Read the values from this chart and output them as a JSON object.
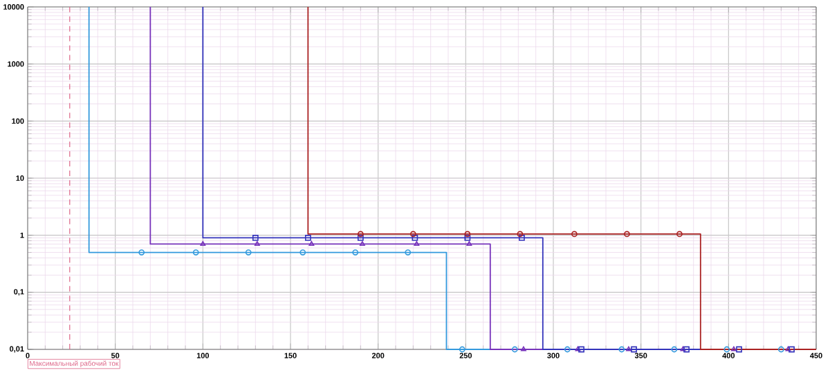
{
  "chart_data": {
    "type": "line",
    "xlim": [
      0,
      450
    ],
    "ylim": [
      0.01,
      10000
    ],
    "log": "y",
    "grid": true,
    "xticks": [
      0,
      50,
      100,
      150,
      200,
      250,
      300,
      350,
      400,
      450
    ],
    "yticks": [
      {
        "value": 0.01,
        "label": "0,01"
      },
      {
        "value": 0.1,
        "label": "0,1"
      },
      1,
      10,
      100,
      1000,
      10000
    ],
    "ref_lines": [
      {
        "axis": "x",
        "value": 24,
        "label": "Максимальный рабочий ток",
        "color": "#dd6688",
        "line_style": "dashed"
      }
    ],
    "series": [
      {
        "color": "#3399dd",
        "marker": "none",
        "x": [
          35,
          35,
          239,
          239,
          450
        ],
        "values": [
          10000,
          0.5,
          0.5,
          0.01,
          0.01
        ]
      },
      {
        "color": "#7733bb",
        "marker": "none",
        "x": [
          70,
          70,
          264,
          264,
          450
        ],
        "values": [
          10000,
          0.7,
          0.7,
          0.01,
          0.01
        ]
      },
      {
        "color": "#3333bb",
        "marker": "none",
        "x": [
          100,
          100,
          294,
          294,
          450
        ],
        "values": [
          10000,
          0.9,
          0.9,
          0.01,
          0.01
        ]
      },
      {
        "color": "#aa2222",
        "marker": "none",
        "x": [
          160,
          160,
          384,
          384,
          450
        ],
        "values": [
          10000,
          1.05,
          1.05,
          0.01,
          0.01
        ]
      },
      {
        "type": "scatter",
        "color": "#3399dd",
        "marker": "circle",
        "x": [
          65,
          96,
          126,
          157,
          187,
          217,
          248,
          278,
          308,
          339,
          369,
          399,
          430
        ],
        "values": [
          0.5,
          0.5,
          0.5,
          0.5,
          0.5,
          0.5,
          0.01,
          0.01,
          0.01,
          0.01,
          0.01,
          0.01,
          0.01
        ]
      },
      {
        "type": "scatter",
        "color": "#7733bb",
        "marker": "triangle",
        "x": [
          100,
          131,
          162,
          191,
          222,
          252,
          283,
          314,
          343,
          374,
          403,
          434
        ],
        "values": [
          0.7,
          0.7,
          0.7,
          0.7,
          0.7,
          0.7,
          0.01,
          0.01,
          0.01,
          0.01,
          0.01,
          0.01
        ]
      },
      {
        "type": "scatter",
        "color": "#3333bb",
        "marker": "square",
        "x": [
          130,
          160,
          190,
          221,
          251,
          282,
          316,
          346,
          376,
          406,
          436
        ],
        "values": [
          0.9,
          0.9,
          0.9,
          0.9,
          0.9,
          0.9,
          0.01,
          0.01,
          0.01,
          0.01,
          0.01
        ]
      },
      {
        "type": "scatter",
        "color": "#aa2222",
        "marker": "circle",
        "x": [
          190,
          220,
          251,
          281,
          312,
          342,
          372
        ],
        "values": [
          1.05,
          1.05,
          1.05,
          1.05,
          1.05,
          1.05,
          1.05
        ]
      }
    ]
  }
}
